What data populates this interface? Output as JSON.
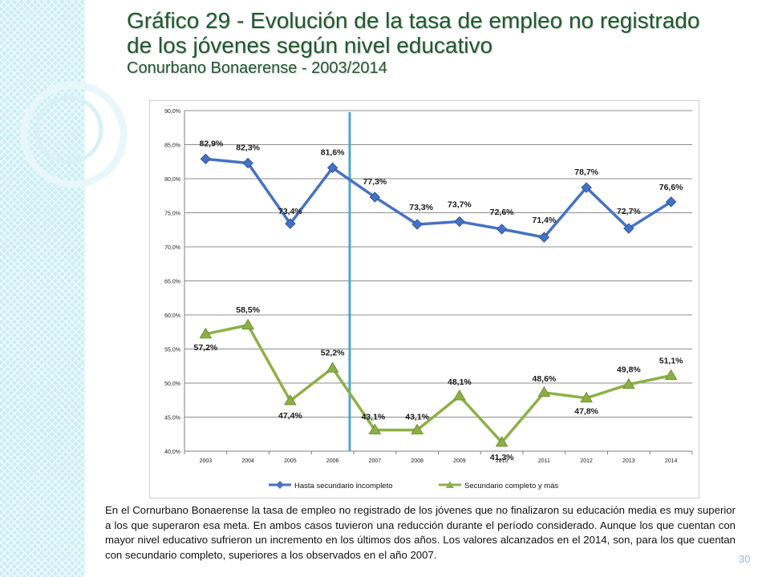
{
  "slide": {
    "title_line1": "Gráfico 29 - Evolución de la tasa de empleo no registrado",
    "title_line2": "de los jóvenes según nivel educativo",
    "subtitle": "Conurbano Bonaerense - 2003/2014",
    "body": "En el Cornurbano Bonaerense la tasa de empleo no registrado de los jóvenes que no finalizaron su educación media es muy superior a los que superaron esa meta. En ambos casos tuvieron una reducción durante el período considerado. Aunque los que cuentan con mayor nivel educativo sufrieron un incremento en los últimos dos años. Los valores alcanzados en el 2014, son, para los que cuentan con secundario completo, superiores a los observados en el año 2007.",
    "page_number": "30"
  },
  "colors": {
    "series1": "#4472c4",
    "series2": "#8db046",
    "divider": "#4aa8c8",
    "title": "#1f5a2e",
    "band": "#c9eef5"
  },
  "chart_data": {
    "type": "line",
    "x": [
      "2003",
      "2004",
      "2005",
      "2006",
      "2007",
      "2008",
      "2009",
      "2010",
      "2011",
      "2012",
      "2013",
      "2014"
    ],
    "ylim": [
      40,
      90
    ],
    "yticks": [
      "40,0%",
      "45,0%",
      "50,0%",
      "55,0%",
      "60,0%",
      "65,0%",
      "70,0%",
      "75,0%",
      "80,0%",
      "85,0%",
      "90,0%"
    ],
    "grid": true,
    "legend_position": "bottom",
    "vertical_marker_between": [
      "2006",
      "2007"
    ],
    "series": [
      {
        "name": "Hasta secundario incompleto",
        "marker": "diamond",
        "values": [
          82.9,
          82.3,
          73.4,
          81.6,
          77.3,
          73.3,
          73.7,
          72.6,
          71.4,
          78.7,
          72.7,
          76.6
        ],
        "labels": [
          "82,9%",
          "82,3%",
          "73,4%",
          "81,6%",
          "77,3%",
          "73,3%",
          "73,7%",
          "72,6%",
          "71,4%",
          "78,7%",
          "72,7%",
          "76,6%"
        ]
      },
      {
        "name": "Secundario completo y más",
        "marker": "triangle",
        "values": [
          57.2,
          58.5,
          47.4,
          52.2,
          43.1,
          43.1,
          48.1,
          41.3,
          48.6,
          47.8,
          49.8,
          51.1
        ],
        "labels": [
          "57,2%",
          "58,5%",
          "47,4%",
          "52,2%",
          "43,1%",
          "43,1%",
          "48,1%",
          "41,3%",
          "48,6%",
          "47,8%",
          "49,8%",
          "51,1%"
        ]
      }
    ]
  }
}
